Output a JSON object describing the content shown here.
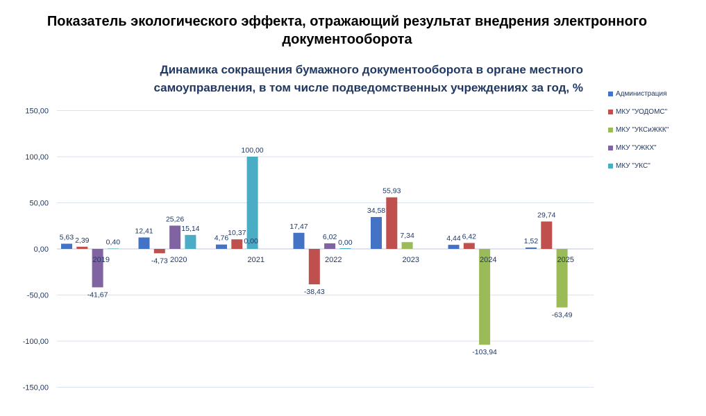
{
  "title": "Показатель экологического эффекта, отражающий результат внедрения электронного документооборота",
  "chart_data": {
    "type": "bar",
    "title": "Динамика сокращения бумажного документооборота в органе местного самоуправления, в том числе подведомственных учреждениях за год, %",
    "categories": [
      "2019",
      "2020",
      "2021",
      "2022",
      "2023",
      "2024",
      "2025"
    ],
    "ylim": [
      -150,
      150
    ],
    "yticks": [
      "150,00",
      "100,00",
      "50,00",
      "0,00",
      "-50,00",
      "-100,00",
      "-150,00"
    ],
    "ytick_values": [
      150,
      100,
      50,
      0,
      -50,
      -100,
      -150
    ],
    "series": [
      {
        "name": "Администрация",
        "color": "#4472c4",
        "values": [
          5.63,
          12.41,
          4.76,
          17.47,
          34.58,
          4.44,
          1.52
        ],
        "labels": [
          "5,63",
          "12,41",
          "4,76",
          "17,47",
          "34,58",
          "4,44",
          "1,52"
        ]
      },
      {
        "name": "МКУ \"УОДОМС\"",
        "color": "#c0504d",
        "values": [
          2.39,
          -4.73,
          10.37,
          -38.43,
          55.93,
          6.42,
          29.74
        ],
        "labels": [
          "2,39",
          "-4,73",
          "10,37",
          "-38,43",
          "55,93",
          "6,42",
          "29,74"
        ]
      },
      {
        "name": "МКУ \"УКСиЖКК\"",
        "color": "#9bbb59",
        "values": [
          null,
          null,
          null,
          null,
          7.34,
          -103.94,
          -63.49
        ],
        "labels": [
          null,
          null,
          null,
          null,
          "7,34",
          "-103,94",
          "-63,49"
        ]
      },
      {
        "name": "МКУ \"УЖКХ\"",
        "color": "#8064a2",
        "values": [
          -41.67,
          25.26,
          null,
          6.02,
          null,
          null,
          null
        ],
        "labels": [
          "-41,67",
          "25,26",
          null,
          "6,02",
          null,
          null,
          null
        ]
      },
      {
        "name": "МКУ \"УКС\"",
        "color": "#4bacc6",
        "values": [
          0.4,
          15.14,
          100.0,
          0.0,
          null,
          null,
          null
        ],
        "labels": [
          "0,40",
          "15,14",
          "100,00",
          "0,00",
          null,
          null,
          null
        ]
      }
    ],
    "extra_labels": [
      {
        "category": "2021",
        "series": 3,
        "label": "0,00"
      }
    ]
  }
}
